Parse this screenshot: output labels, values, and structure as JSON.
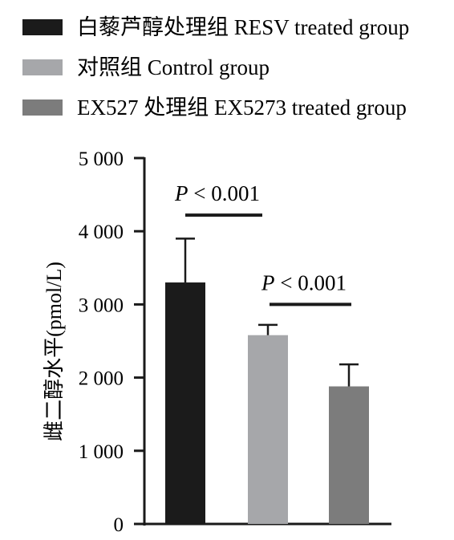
{
  "chart_data": {
    "type": "bar",
    "categories": [
      "白藜芦醇处理组 RESV treated group",
      "对照组 Control group",
      "EX527 处理组 EX5273 treated group"
    ],
    "values": [
      3300,
      2580,
      1880
    ],
    "error_upper": [
      3900,
      2720,
      2180
    ],
    "colors": [
      "#1b1b1b",
      "#a6a7aa",
      "#7c7c7c"
    ],
    "ylabel": "雌二醇水平(pmol/L)",
    "ylim": [
      0,
      5000
    ],
    "yticks": [
      0,
      1000,
      2000,
      3000,
      4000,
      5000
    ],
    "ytick_labels": [
      "0",
      "1 000",
      "2 000",
      "3 000",
      "4 000",
      "5 000"
    ],
    "legend": {
      "placement": "top-left",
      "items": [
        {
          "label": "白藜芦醇处理组 RESV treated group",
          "color": "#1b1b1b"
        },
        {
          "label": "对照组 Control group",
          "color": "#a6a7aa"
        },
        {
          "label": "EX527 处理组 EX5273 treated group",
          "color": "#7c7c7c"
        }
      ]
    },
    "annotations": [
      {
        "between": [
          0,
          1
        ],
        "p_symbol": "P",
        "text": " < 0.001",
        "line_value": 4220
      },
      {
        "between": [
          1,
          2
        ],
        "p_symbol": "P",
        "text": " < 0.001",
        "line_value": 3000
      }
    ]
  }
}
